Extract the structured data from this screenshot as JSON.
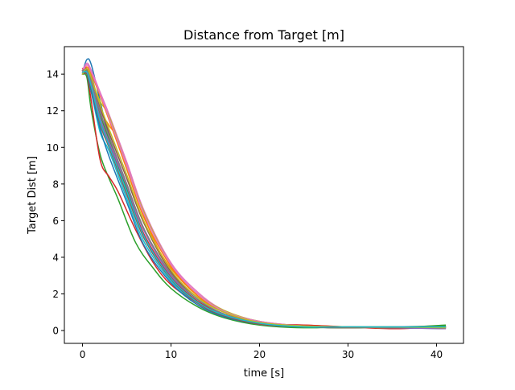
{
  "chart_data": {
    "type": "line",
    "title": "Distance from Target [m]",
    "xlabel": "time [s]",
    "ylabel": "Target Dist [m]",
    "xlim": [
      -2.05,
      43.05
    ],
    "ylim": [
      -0.7,
      15.5
    ],
    "xticks": [
      0,
      10,
      20,
      30,
      40
    ],
    "yticks": [
      0,
      2,
      4,
      6,
      8,
      10,
      12,
      14
    ],
    "grid": false,
    "legend": "none",
    "x_end": 41,
    "series_colors": [
      "#1f77b4",
      "#ff7f0e",
      "#2ca02c",
      "#d62728",
      "#9467bd",
      "#8c564b",
      "#e377c2",
      "#7f7f7f",
      "#bcbd22",
      "#17becf"
    ],
    "series": [
      {
        "color": "#1f77b4",
        "points": [
          [
            0,
            14.1
          ],
          [
            0.5,
            14.8
          ],
          [
            1,
            14.5
          ],
          [
            2,
            12.5
          ],
          [
            3,
            10.6
          ],
          [
            5,
            8.0
          ],
          [
            7,
            5.5
          ],
          [
            10,
            3.0
          ],
          [
            13,
            1.7
          ],
          [
            16,
            0.9
          ],
          [
            20,
            0.4
          ],
          [
            25,
            0.2
          ],
          [
            30,
            0.15
          ],
          [
            35,
            0.2
          ],
          [
            41,
            0.15
          ]
        ]
      },
      {
        "color": "#ff7f0e",
        "points": [
          [
            0,
            14.2
          ],
          [
            0.5,
            14.2
          ],
          [
            1,
            13.5
          ],
          [
            2,
            12.0
          ],
          [
            3,
            11.2
          ],
          [
            4,
            10.4
          ],
          [
            6,
            7.6
          ],
          [
            8,
            5.0
          ],
          [
            10,
            3.4
          ],
          [
            13,
            1.9
          ],
          [
            16,
            1.0
          ],
          [
            20,
            0.45
          ],
          [
            25,
            0.25
          ],
          [
            30,
            0.2
          ],
          [
            35,
            0.2
          ],
          [
            41,
            0.2
          ]
        ]
      },
      {
        "color": "#2ca02c",
        "points": [
          [
            0,
            14.0
          ],
          [
            0.5,
            13.8
          ],
          [
            1,
            12.0
          ],
          [
            2,
            9.6
          ],
          [
            3,
            8.3
          ],
          [
            4,
            7.2
          ],
          [
            6,
            4.8
          ],
          [
            8,
            3.4
          ],
          [
            10,
            2.3
          ],
          [
            13,
            1.3
          ],
          [
            16,
            0.7
          ],
          [
            20,
            0.3
          ],
          [
            25,
            0.15
          ],
          [
            30,
            0.2
          ],
          [
            35,
            0.15
          ],
          [
            41,
            0.3
          ]
        ]
      },
      {
        "color": "#d62728",
        "points": [
          [
            0,
            14.3
          ],
          [
            0.5,
            14.0
          ],
          [
            1,
            12.5
          ],
          [
            2,
            9.3
          ],
          [
            3,
            8.4
          ],
          [
            4,
            7.6
          ],
          [
            6,
            5.5
          ],
          [
            8,
            3.7
          ],
          [
            10,
            2.5
          ],
          [
            13,
            1.5
          ],
          [
            16,
            0.8
          ],
          [
            20,
            0.35
          ],
          [
            25,
            0.3
          ],
          [
            30,
            0.2
          ],
          [
            35,
            0.1
          ],
          [
            41,
            0.2
          ]
        ]
      },
      {
        "color": "#9467bd",
        "points": [
          [
            0,
            14.0
          ],
          [
            0.5,
            14.6
          ],
          [
            1,
            14.0
          ],
          [
            2,
            12.0
          ],
          [
            3,
            10.5
          ],
          [
            5,
            7.8
          ],
          [
            7,
            5.2
          ],
          [
            10,
            2.9
          ],
          [
            13,
            1.6
          ],
          [
            16,
            0.9
          ],
          [
            20,
            0.4
          ],
          [
            25,
            0.2
          ],
          [
            30,
            0.2
          ],
          [
            35,
            0.15
          ],
          [
            41,
            0.15
          ]
        ]
      },
      {
        "color": "#8c564b",
        "points": [
          [
            0,
            14.1
          ],
          [
            0.5,
            14.3
          ],
          [
            1,
            13.8
          ],
          [
            2,
            12.2
          ],
          [
            3,
            10.8
          ],
          [
            5,
            8.3
          ],
          [
            7,
            5.8
          ],
          [
            10,
            3.2
          ],
          [
            13,
            1.8
          ],
          [
            16,
            1.0
          ],
          [
            20,
            0.45
          ],
          [
            25,
            0.25
          ],
          [
            30,
            0.15
          ],
          [
            35,
            0.2
          ],
          [
            41,
            0.1
          ]
        ]
      },
      {
        "color": "#e377c2",
        "points": [
          [
            0,
            14.2
          ],
          [
            0.5,
            14.6
          ],
          [
            1,
            14.2
          ],
          [
            2,
            13.0
          ],
          [
            3,
            11.8
          ],
          [
            5,
            9.2
          ],
          [
            7,
            6.5
          ],
          [
            10,
            3.7
          ],
          [
            13,
            2.1
          ],
          [
            16,
            1.1
          ],
          [
            20,
            0.5
          ],
          [
            25,
            0.25
          ],
          [
            30,
            0.2
          ],
          [
            35,
            0.2
          ],
          [
            41,
            0.15
          ]
        ]
      },
      {
        "color": "#7f7f7f",
        "points": [
          [
            0,
            14.0
          ],
          [
            0.5,
            14.1
          ],
          [
            1,
            13.3
          ],
          [
            2,
            11.2
          ],
          [
            3,
            10.0
          ],
          [
            5,
            7.4
          ],
          [
            7,
            5.0
          ],
          [
            10,
            2.8
          ],
          [
            13,
            1.5
          ],
          [
            16,
            0.8
          ],
          [
            20,
            0.35
          ],
          [
            25,
            0.2
          ],
          [
            30,
            0.15
          ],
          [
            35,
            0.2
          ],
          [
            41,
            0.2
          ]
        ]
      },
      {
        "color": "#bcbd22",
        "points": [
          [
            0,
            14.1
          ],
          [
            0.5,
            14.3
          ],
          [
            1,
            13.7
          ],
          [
            2,
            12.5
          ],
          [
            3,
            11.7
          ],
          [
            5,
            9.0
          ],
          [
            7,
            6.4
          ],
          [
            10,
            3.6
          ],
          [
            13,
            2.0
          ],
          [
            16,
            1.1
          ],
          [
            20,
            0.5
          ],
          [
            25,
            0.25
          ],
          [
            30,
            0.2
          ],
          [
            35,
            0.15
          ],
          [
            41,
            0.2
          ]
        ]
      },
      {
        "color": "#17becf",
        "points": [
          [
            0,
            14.0
          ],
          [
            0.5,
            14.0
          ],
          [
            1,
            13.0
          ],
          [
            2,
            10.8
          ],
          [
            3,
            9.8
          ],
          [
            5,
            7.2
          ],
          [
            7,
            4.8
          ],
          [
            10,
            2.7
          ],
          [
            13,
            1.5
          ],
          [
            16,
            0.8
          ],
          [
            20,
            0.35
          ],
          [
            25,
            0.2
          ],
          [
            30,
            0.2
          ],
          [
            35,
            0.2
          ],
          [
            41,
            0.15
          ]
        ]
      },
      {
        "color": "#1f77b4",
        "points": [
          [
            0,
            14.2
          ],
          [
            0.5,
            14.0
          ],
          [
            1,
            13.0
          ],
          [
            2,
            11.0
          ],
          [
            3,
            9.5
          ],
          [
            5,
            7.0
          ],
          [
            7,
            4.6
          ],
          [
            10,
            2.6
          ],
          [
            13,
            1.4
          ],
          [
            16,
            0.75
          ],
          [
            20,
            0.35
          ],
          [
            25,
            0.2
          ],
          [
            30,
            0.2
          ],
          [
            35,
            0.15
          ],
          [
            41,
            0.1
          ]
        ]
      },
      {
        "color": "#ff7f0e",
        "points": [
          [
            0,
            14.1
          ],
          [
            0.5,
            14.4
          ],
          [
            1,
            14.0
          ],
          [
            2,
            12.8
          ],
          [
            3,
            11.5
          ],
          [
            5,
            8.8
          ],
          [
            7,
            6.1
          ],
          [
            10,
            3.5
          ],
          [
            13,
            1.9
          ],
          [
            16,
            1.0
          ],
          [
            20,
            0.45
          ],
          [
            25,
            0.25
          ],
          [
            30,
            0.2
          ],
          [
            35,
            0.2
          ],
          [
            41,
            0.2
          ]
        ]
      },
      {
        "color": "#2ca02c",
        "points": [
          [
            0,
            14.0
          ],
          [
            0.5,
            14.2
          ],
          [
            1,
            13.6
          ],
          [
            2,
            11.8
          ],
          [
            3,
            10.4
          ],
          [
            5,
            7.7
          ],
          [
            7,
            5.1
          ],
          [
            10,
            2.9
          ],
          [
            13,
            1.6
          ],
          [
            16,
            0.85
          ],
          [
            20,
            0.4
          ],
          [
            25,
            0.2
          ],
          [
            30,
            0.15
          ],
          [
            35,
            0.2
          ],
          [
            41,
            0.25
          ]
        ]
      },
      {
        "color": "#d62728",
        "points": [
          [
            0,
            14.2
          ],
          [
            0.5,
            14.3
          ],
          [
            1,
            13.5
          ],
          [
            2,
            11.5
          ],
          [
            3,
            10.2
          ],
          [
            5,
            7.6
          ],
          [
            7,
            5.2
          ],
          [
            10,
            2.9
          ],
          [
            13,
            1.6
          ],
          [
            16,
            0.9
          ],
          [
            20,
            0.4
          ],
          [
            25,
            0.3
          ],
          [
            30,
            0.2
          ],
          [
            35,
            0.2
          ],
          [
            41,
            0.2
          ]
        ]
      },
      {
        "color": "#9467bd",
        "points": [
          [
            0,
            14.1
          ],
          [
            0.5,
            14.1
          ],
          [
            1,
            13.4
          ],
          [
            2,
            11.6
          ],
          [
            3,
            10.3
          ],
          [
            5,
            7.9
          ],
          [
            7,
            5.4
          ],
          [
            10,
            3.0
          ],
          [
            13,
            1.7
          ],
          [
            16,
            0.9
          ],
          [
            20,
            0.4
          ],
          [
            25,
            0.2
          ],
          [
            30,
            0.2
          ],
          [
            35,
            0.15
          ],
          [
            41,
            0.1
          ]
        ]
      },
      {
        "color": "#8c564b",
        "points": [
          [
            0,
            14.0
          ],
          [
            0.5,
            14.0
          ],
          [
            1,
            13.2
          ],
          [
            2,
            11.3
          ],
          [
            3,
            10.0
          ],
          [
            5,
            7.5
          ],
          [
            7,
            5.0
          ],
          [
            10,
            2.8
          ],
          [
            13,
            1.5
          ],
          [
            16,
            0.8
          ],
          [
            20,
            0.35
          ],
          [
            25,
            0.2
          ],
          [
            30,
            0.15
          ],
          [
            35,
            0.2
          ],
          [
            41,
            0.15
          ]
        ]
      },
      {
        "color": "#e377c2",
        "points": [
          [
            0,
            14.1
          ],
          [
            0.5,
            14.5
          ],
          [
            1,
            14.1
          ],
          [
            2,
            12.9
          ],
          [
            3,
            11.6
          ],
          [
            5,
            9.0
          ],
          [
            7,
            6.3
          ],
          [
            10,
            3.6
          ],
          [
            13,
            2.0
          ],
          [
            16,
            1.05
          ],
          [
            20,
            0.5
          ],
          [
            25,
            0.25
          ],
          [
            30,
            0.2
          ],
          [
            35,
            0.2
          ],
          [
            41,
            0.2
          ]
        ]
      },
      {
        "color": "#7f7f7f",
        "points": [
          [
            0,
            14.2
          ],
          [
            0.5,
            14.2
          ],
          [
            1,
            13.6
          ],
          [
            2,
            11.9
          ],
          [
            3,
            10.6
          ],
          [
            5,
            8.0
          ],
          [
            7,
            5.5
          ],
          [
            10,
            3.1
          ],
          [
            13,
            1.7
          ],
          [
            16,
            0.9
          ],
          [
            20,
            0.4
          ],
          [
            25,
            0.2
          ],
          [
            30,
            0.2
          ],
          [
            35,
            0.15
          ],
          [
            41,
            0.2
          ]
        ]
      },
      {
        "color": "#bcbd22",
        "points": [
          [
            0,
            14.0
          ],
          [
            0.5,
            14.3
          ],
          [
            1,
            13.8
          ],
          [
            2,
            12.3
          ],
          [
            3,
            11.0
          ],
          [
            5,
            8.5
          ],
          [
            7,
            5.9
          ],
          [
            10,
            3.3
          ],
          [
            13,
            1.8
          ],
          [
            16,
            1.0
          ],
          [
            20,
            0.45
          ],
          [
            25,
            0.25
          ],
          [
            30,
            0.2
          ],
          [
            35,
            0.2
          ],
          [
            41,
            0.15
          ]
        ]
      },
      {
        "color": "#17becf",
        "points": [
          [
            0,
            14.1
          ],
          [
            0.5,
            14.1
          ],
          [
            1,
            13.3
          ],
          [
            2,
            11.4
          ],
          [
            3,
            10.1
          ],
          [
            5,
            7.6
          ],
          [
            7,
            5.1
          ],
          [
            10,
            2.85
          ],
          [
            13,
            1.55
          ],
          [
            16,
            0.85
          ],
          [
            20,
            0.4
          ],
          [
            25,
            0.2
          ],
          [
            30,
            0.2
          ],
          [
            35,
            0.2
          ],
          [
            41,
            0.2
          ]
        ]
      }
    ]
  }
}
